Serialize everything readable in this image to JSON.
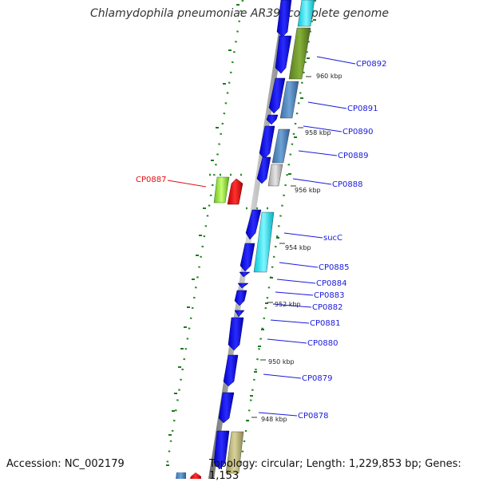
{
  "title": "Chlamydophila pneumoniae AR39, complete genome",
  "footer": {
    "accession": "Accession: NC_002179",
    "summary": "Topology: circular; Length: 1,229,853 bp; Genes: 1,153"
  },
  "ruler_ticks": [
    "960 kbp",
    "958 kbp",
    "956 kbp",
    "954 kbp",
    "952 kbp",
    "950 kbp",
    "948 kbp"
  ],
  "genes": [
    {
      "label": "CP0892",
      "color": "#1a1adb"
    },
    {
      "label": "CP0891",
      "color": "#1a1adb"
    },
    {
      "label": "CP0890",
      "color": "#1a1adb"
    },
    {
      "label": "CP0889",
      "color": "#1a1adb"
    },
    {
      "label": "CP0888",
      "color": "#1a1adb"
    },
    {
      "label": "CP0887",
      "color": "#e01010"
    },
    {
      "label": "sucC",
      "color": "#1a1adb"
    },
    {
      "label": "CP0885",
      "color": "#1a1adb"
    },
    {
      "label": "CP0884",
      "color": "#1a1adb"
    },
    {
      "label": "CP0883",
      "color": "#1a1adb"
    },
    {
      "label": "CP0882",
      "color": "#1a1adb"
    },
    {
      "label": "CP0881",
      "color": "#1a1adb"
    },
    {
      "label": "CP0880",
      "color": "#1a1adb"
    },
    {
      "label": "CP0879",
      "color": "#1a1adb"
    },
    {
      "label": "CP0878",
      "color": "#1a1adb"
    }
  ],
  "colors": {
    "strand": "#1414e6",
    "backbone": "#8c8c8c",
    "gc_dots": "#2a8a2a",
    "highlight_red": "#e01010",
    "highlight_green": "#8fe03a"
  }
}
